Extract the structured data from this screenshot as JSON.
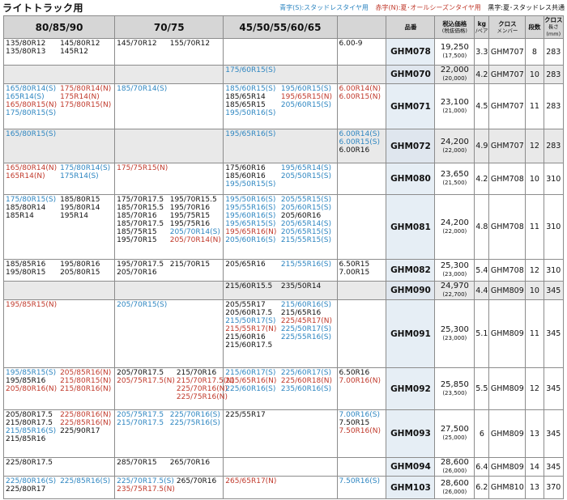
{
  "header": {
    "title": "ライトトラック用",
    "legend_blue": "青字(S):スタッドレスタイヤ用",
    "legend_red": "赤字(N):夏･オールシーズンタイヤ用",
    "legend_black": "黒字:夏･スタッドレス共通"
  },
  "columns": {
    "c1": "80/85/90",
    "c2": "70/75",
    "c3": "45/50/55/60/65",
    "c4": "",
    "product": "品番",
    "price": "税込価格",
    "price_sub": "(税抜価格)",
    "kg": "kg",
    "kg_sub": "/ペア",
    "cross": "クロス",
    "cross_sub": "メンバー",
    "rungs": "段数",
    "length": "クロス",
    "length_sub": "長さ(mm)"
  },
  "rows": [
    {
      "product": "GHM078",
      "price": "19,250",
      "price_ex": "(17,500)",
      "kg": "3.3",
      "cross": "GHM707",
      "rungs": "8",
      "length": "283",
      "gray": false,
      "c1": [
        [
          "135/80R12",
          "k"
        ],
        [
          "145/80R12",
          "k"
        ],
        [
          "135/80R13",
          "k"
        ],
        [
          "145R12",
          "k"
        ]
      ],
      "c2": [
        [
          "145/70R12",
          "k"
        ],
        [
          "155/70R12",
          "k"
        ]
      ],
      "c3": [],
      "c4": [
        [
          "6.00-9",
          "k"
        ]
      ]
    },
    {
      "product": "GHM070",
      "price": "22,000",
      "price_ex": "(20,000)",
      "kg": "4.2",
      "cross": "GHM707",
      "rungs": "10",
      "length": "283",
      "gray": true,
      "c1": [],
      "c2": [],
      "c3": [
        [
          "175/60R15(S)",
          "b"
        ]
      ],
      "c4": []
    },
    {
      "product": "GHM071",
      "price": "23,100",
      "price_ex": "(21,000)",
      "kg": "4.5",
      "cross": "GHM707",
      "rungs": "11",
      "length": "283",
      "gray": false,
      "c1": [
        [
          "165/80R14(S)",
          "b"
        ],
        [
          "175/80R14(N)",
          "r"
        ],
        [
          "165R14(S)",
          "b"
        ],
        [
          "175R14(N)",
          "r"
        ],
        [
          "165/80R15(N)",
          "r"
        ],
        [
          "175/80R15(N)",
          "r"
        ],
        [
          "175/80R15(S)",
          "b"
        ],
        [
          "",
          "k"
        ]
      ],
      "c2": [
        [
          "185/70R14(S)",
          "b"
        ]
      ],
      "c3": [
        [
          "185/60R15(S)",
          "b"
        ],
        [
          "195/60R15(S)",
          "b"
        ],
        [
          "185/65R14",
          "k"
        ],
        [
          "195/65R15(N)",
          "r"
        ],
        [
          "185/65R15",
          "k"
        ],
        [
          "205/60R15(S)",
          "b"
        ],
        [
          "195/50R16(S)",
          "b"
        ],
        [
          "",
          "k"
        ]
      ],
      "c4": [
        [
          "6.00R14(N)",
          "r"
        ],
        [
          "6.00R15(N)",
          "r"
        ]
      ]
    },
    {
      "product": "GHM072",
      "price": "24,200",
      "price_ex": "(22,000)",
      "kg": "4.9",
      "cross": "GHM707",
      "rungs": "12",
      "length": "283",
      "gray": true,
      "c1": [
        [
          "165/80R15(S)",
          "b"
        ]
      ],
      "c2": [],
      "c3": [
        [
          "195/65R16(S)",
          "b"
        ]
      ],
      "c4": [
        [
          "6.00R14(S)",
          "b"
        ],
        [
          "6.00R15(S)",
          "b"
        ],
        [
          "6.00R16",
          "k"
        ]
      ]
    },
    {
      "product": "GHM080",
      "price": "23,650",
      "price_ex": "(21,500)",
      "kg": "4.2",
      "cross": "GHM708",
      "rungs": "10",
      "length": "310",
      "gray": false,
      "c1": [
        [
          "165/80R14(N)",
          "r"
        ],
        [
          "175/80R14(S)",
          "b"
        ],
        [
          "165R14(N)",
          "r"
        ],
        [
          "175R14(S)",
          "b"
        ]
      ],
      "c2": [
        [
          "175/75R15(N)",
          "r"
        ]
      ],
      "c3": [
        [
          "175/60R16",
          "k"
        ],
        [
          "195/65R14(S)",
          "b"
        ],
        [
          "185/60R16",
          "k"
        ],
        [
          "205/50R15(S)",
          "b"
        ],
        [
          "195/50R15(S)",
          "b"
        ],
        [
          "",
          "k"
        ]
      ],
      "c4": []
    },
    {
      "product": "GHM081",
      "price": "24,200",
      "price_ex": "(22,000)",
      "kg": "4.8",
      "cross": "GHM708",
      "rungs": "11",
      "length": "310",
      "gray": false,
      "c1": [
        [
          "175/80R15(S)",
          "b"
        ],
        [
          "185/80R15",
          "k"
        ],
        [
          "185/80R14",
          "k"
        ],
        [
          "195/80R14",
          "k"
        ],
        [
          "185R14",
          "k"
        ],
        [
          "195R14",
          "k"
        ]
      ],
      "c2": [
        [
          "175/70R17.5",
          "k"
        ],
        [
          "195/70R15.5",
          "k"
        ],
        [
          "185/70R15.5",
          "k"
        ],
        [
          "195/70R16",
          "k"
        ],
        [
          "185/70R16",
          "k"
        ],
        [
          "195/75R15",
          "k"
        ],
        [
          "185/70R17.5",
          "k"
        ],
        [
          "195/75R16",
          "k"
        ],
        [
          "185/75R15",
          "k"
        ],
        [
          "205/70R14(S)",
          "b"
        ],
        [
          "195/70R15",
          "k"
        ],
        [
          "205/70R14(N)",
          "r"
        ]
      ],
      "c3": [
        [
          "195/50R16(S)",
          "b"
        ],
        [
          "205/55R15(S)",
          "b"
        ],
        [
          "195/55R16(S)",
          "b"
        ],
        [
          "205/60R15(S)",
          "b"
        ],
        [
          "195/60R16(S)",
          "b"
        ],
        [
          "205/60R16",
          "k"
        ],
        [
          "195/65R15(S)",
          "b"
        ],
        [
          "205/65R14(S)",
          "b"
        ],
        [
          "195/65R16(N)",
          "r"
        ],
        [
          "205/65R15(S)",
          "b"
        ],
        [
          "205/60R16(S)",
          "b"
        ],
        [
          "215/55R15(S)",
          "b"
        ]
      ],
      "c4": []
    },
    {
      "product": "GHM082",
      "price": "25,300",
      "price_ex": "(23,000)",
      "kg": "5.4",
      "cross": "GHM708",
      "rungs": "12",
      "length": "310",
      "gray": false,
      "c1": [
        [
          "185/85R16",
          "k"
        ],
        [
          "195/80R16",
          "k"
        ],
        [
          "195/80R15",
          "k"
        ],
        [
          "205/80R15",
          "k"
        ]
      ],
      "c2": [
        [
          "195/70R17.5",
          "k"
        ],
        [
          "215/70R15",
          "k"
        ],
        [
          "205/70R16",
          "k"
        ],
        [
          "",
          "k"
        ]
      ],
      "c3": [
        [
          "205/65R16",
          "k"
        ],
        [
          "215/55R16(S)",
          "b"
        ]
      ],
      "c4": [
        [
          "6.50R15",
          "k"
        ],
        [
          "7.00R15",
          "k"
        ]
      ]
    },
    {
      "product": "GHM090",
      "price": "24,970",
      "price_ex": "(22,700)",
      "kg": "4.4",
      "cross": "GHM809",
      "rungs": "10",
      "length": "345",
      "gray": true,
      "c1": [],
      "c2": [],
      "c3": [
        [
          "215/60R15.5",
          "k"
        ],
        [
          "235/50R14",
          "k"
        ]
      ],
      "c4": []
    },
    {
      "product": "GHM091",
      "price": "25,300",
      "price_ex": "(23,000)",
      "kg": "5.1",
      "cross": "GHM809",
      "rungs": "11",
      "length": "345",
      "gray": false,
      "c1": [
        [
          "195/85R15(N)",
          "r"
        ]
      ],
      "c2": [
        [
          "205/70R15(S)",
          "b"
        ]
      ],
      "c3": [
        [
          "205/55R17",
          "k"
        ],
        [
          "215/60R16(S)",
          "b"
        ],
        [
          "205/60R17.5",
          "k"
        ],
        [
          "215/65R16",
          "k"
        ],
        [
          "215/50R17(S)",
          "b"
        ],
        [
          "225/45R17(N)",
          "r"
        ],
        [
          "215/55R17(N)",
          "r"
        ],
        [
          "225/50R17(S)",
          "b"
        ],
        [
          "215/60R16",
          "k"
        ],
        [
          "225/55R16(S)",
          "b"
        ],
        [
          "215/60R17.5",
          "k"
        ],
        [
          "",
          "k"
        ]
      ],
      "c4": []
    },
    {
      "product": "GHM092",
      "price": "25,850",
      "price_ex": "(23,500)",
      "kg": "5.5",
      "cross": "GHM809",
      "rungs": "12",
      "length": "345",
      "gray": false,
      "c1": [
        [
          "195/85R15(S)",
          "b"
        ],
        [
          "205/85R16(N)",
          "r"
        ],
        [
          "195/85R16",
          "k"
        ],
        [
          "215/80R15(N)",
          "r"
        ],
        [
          "205/80R16(N)",
          "r"
        ],
        [
          "215/80R16(N)",
          "r"
        ]
      ],
      "c2": [
        [
          "205/70R17.5",
          "k"
        ],
        [
          "215/70R16",
          "k"
        ],
        [
          "205/75R17.5(N)",
          "r"
        ],
        [
          "215/70R17.5(N)",
          "r"
        ],
        [
          "",
          "k"
        ],
        [
          "225/70R16(N)",
          "r"
        ],
        [
          "",
          "k"
        ],
        [
          "225/75R16(N)",
          "r"
        ]
      ],
      "c3": [
        [
          "215/60R17(S)",
          "b"
        ],
        [
          "225/60R17(S)",
          "b"
        ],
        [
          "215/65R16(N)",
          "r"
        ],
        [
          "225/60R18(N)",
          "r"
        ],
        [
          "225/60R16(S)",
          "b"
        ],
        [
          "235/60R16(S)",
          "b"
        ]
      ],
      "c4": [
        [
          "6.50R16",
          "k"
        ],
        [
          "7.00R16(N)",
          "r"
        ]
      ]
    },
    {
      "product": "GHM093",
      "price": "27,500",
      "price_ex": "(25,000)",
      "kg": "6",
      "cross": "GHM809",
      "rungs": "13",
      "length": "345",
      "gray": false,
      "c1": [
        [
          "205/80R17.5",
          "k"
        ],
        [
          "225/80R16(N)",
          "r"
        ],
        [
          "215/80R17.5",
          "k"
        ],
        [
          "225/85R16(N)",
          "r"
        ],
        [
          "215/85R16(S)",
          "b"
        ],
        [
          "225/90R17",
          "k"
        ],
        [
          "215/85R16",
          "k"
        ],
        [
          "",
          "k"
        ]
      ],
      "c2": [
        [
          "205/75R17.5",
          "b"
        ],
        [
          "225/70R16(S)",
          "b"
        ],
        [
          "215/70R17.5",
          "b"
        ],
        [
          "225/75R16(S)",
          "b"
        ]
      ],
      "c3": [
        [
          "225/55R17",
          "k"
        ]
      ],
      "c4": [
        [
          "7.00R16(S)",
          "b"
        ],
        [
          "7.50R15",
          "k"
        ],
        [
          "7.50R16(N)",
          "r"
        ]
      ]
    },
    {
      "product": "GHM094",
      "price": "28,600",
      "price_ex": "(26,000)",
      "kg": "6.4",
      "cross": "GHM809",
      "rungs": "14",
      "length": "345",
      "gray": false,
      "c1": [
        [
          "225/80R17.5",
          "k"
        ]
      ],
      "c2": [
        [
          "285/70R15",
          "k"
        ],
        [
          "265/70R16",
          "k"
        ]
      ],
      "c3": [],
      "c4": []
    },
    {
      "product": "GHM103",
      "price": "28,600",
      "price_ex": "(26,000)",
      "kg": "6.2",
      "cross": "GHM810",
      "rungs": "13",
      "length": "370",
      "gray": false,
      "c1": [
        [
          "225/80R16(S)",
          "b"
        ],
        [
          "225/85R16(S)",
          "b"
        ],
        [
          "225/80R17",
          "k"
        ],
        [
          "",
          "k"
        ]
      ],
      "c2": [
        [
          "225/70R17.5(S)",
          "b"
        ],
        [
          "265/70R16",
          "k"
        ],
        [
          "235/75R17.5(N)",
          "r"
        ],
        [
          "",
          "k"
        ]
      ],
      "c3": [
        [
          "265/65R17(N)",
          "r"
        ]
      ],
      "c4": [
        [
          "7.50R16(S)",
          "b"
        ]
      ]
    }
  ]
}
